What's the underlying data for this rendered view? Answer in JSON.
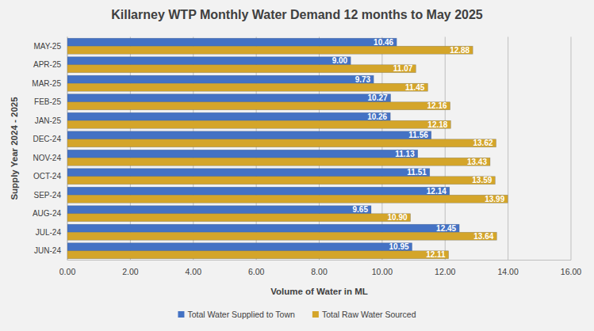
{
  "chart_data": {
    "type": "bar",
    "orientation": "horizontal",
    "title": "Killarney WTP Monthly Water Demand 12 months to May 2025",
    "xlabel": "Volume of Water in ML",
    "ylabel": "Supply Year 2024 - 2025",
    "categories": [
      "JUN-24",
      "JUL-24",
      "AUG-24",
      "SEP-24",
      "OCT-24",
      "NOV-24",
      "DEC-24",
      "JAN-25",
      "FEB-25",
      "MAR-25",
      "APR-25",
      "MAY-25"
    ],
    "series": [
      {
        "name": "Total Water Supplied to Town",
        "color": "#4472c4",
        "values": [
          10.95,
          12.45,
          9.65,
          12.14,
          11.51,
          11.13,
          11.56,
          10.26,
          10.27,
          9.73,
          9.0,
          10.46
        ],
        "value_labels": [
          "10.95",
          "12.45",
          "9.65",
          "12.14",
          "11.51",
          "11.13",
          "11.56",
          "10.26",
          "10.27",
          "9.73",
          "9.00",
          "10.46"
        ]
      },
      {
        "name": "Total Raw Water Sourced",
        "color": "#d4a52a",
        "values": [
          12.11,
          13.64,
          10.9,
          13.99,
          13.59,
          13.43,
          13.62,
          12.18,
          12.16,
          11.45,
          11.07,
          12.88
        ],
        "value_labels": [
          "12.11",
          "13.64",
          "10.90",
          "13.99",
          "13.59",
          "13.43",
          "13.62",
          "12.18",
          "12.16",
          "11.45",
          "11.07",
          "12.88"
        ]
      }
    ],
    "xlim": [
      0,
      16
    ],
    "xticks": [
      {
        "value": 0,
        "label": "0.00"
      },
      {
        "value": 2,
        "label": "2.00"
      },
      {
        "value": 4,
        "label": "4.00"
      },
      {
        "value": 6,
        "label": "6.00"
      },
      {
        "value": 8,
        "label": "8.00"
      },
      {
        "value": 10,
        "label": "10.00"
      },
      {
        "value": 12,
        "label": "12.00"
      },
      {
        "value": 14,
        "label": "14.00"
      },
      {
        "value": 16,
        "label": "16.00"
      }
    ],
    "grid": true,
    "legend": "bottom",
    "data_labels": true
  }
}
